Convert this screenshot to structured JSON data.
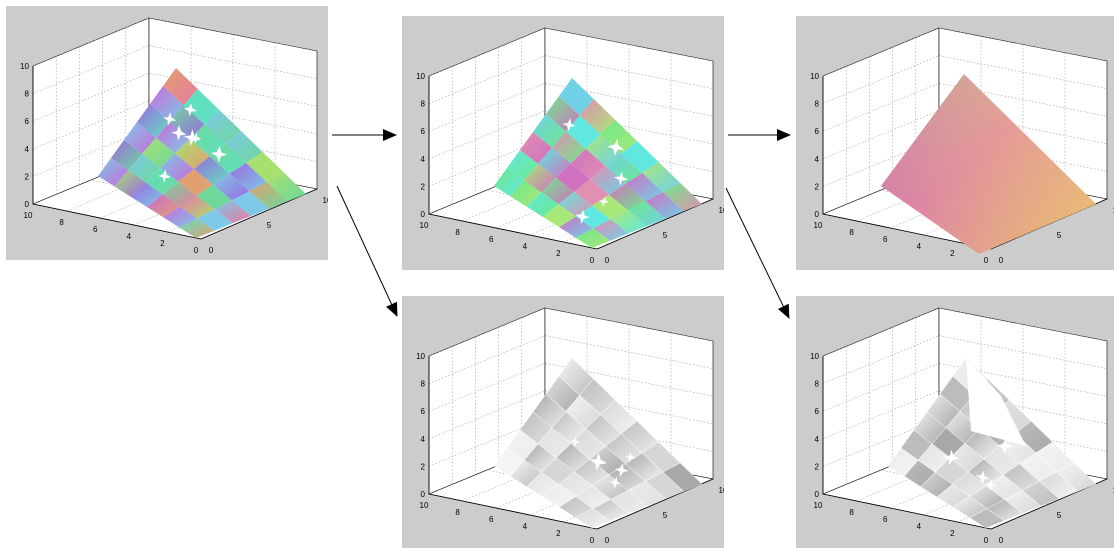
{
  "axes": {
    "z_ticks": [
      "0",
      "2",
      "4",
      "6",
      "8",
      "10"
    ],
    "y_ticks": [
      "10",
      "8",
      "6",
      "4",
      "2",
      "0"
    ],
    "x_ticks": [
      "0",
      "5",
      "10"
    ],
    "range": [
      0,
      10
    ]
  },
  "panels": [
    {
      "id": "p1",
      "surface": "multicolor-crumpled",
      "style": "color"
    },
    {
      "id": "p2",
      "surface": "partially-smoothed",
      "style": "color"
    },
    {
      "id": "p3",
      "surface": "flat-plane",
      "style": "color"
    },
    {
      "id": "p4",
      "surface": "partially-smoothed",
      "style": "grayscale"
    },
    {
      "id": "p5",
      "surface": "shaded-pieces",
      "style": "grayscale"
    }
  ],
  "arrows": [
    {
      "from": "p1",
      "to": "p2",
      "direction": "right"
    },
    {
      "from": "p2",
      "to": "p3",
      "direction": "right"
    },
    {
      "from": "p1",
      "to": "p4",
      "direction": "down-right"
    },
    {
      "from": "p2",
      "to": "p5",
      "direction": "down-right"
    }
  ]
}
